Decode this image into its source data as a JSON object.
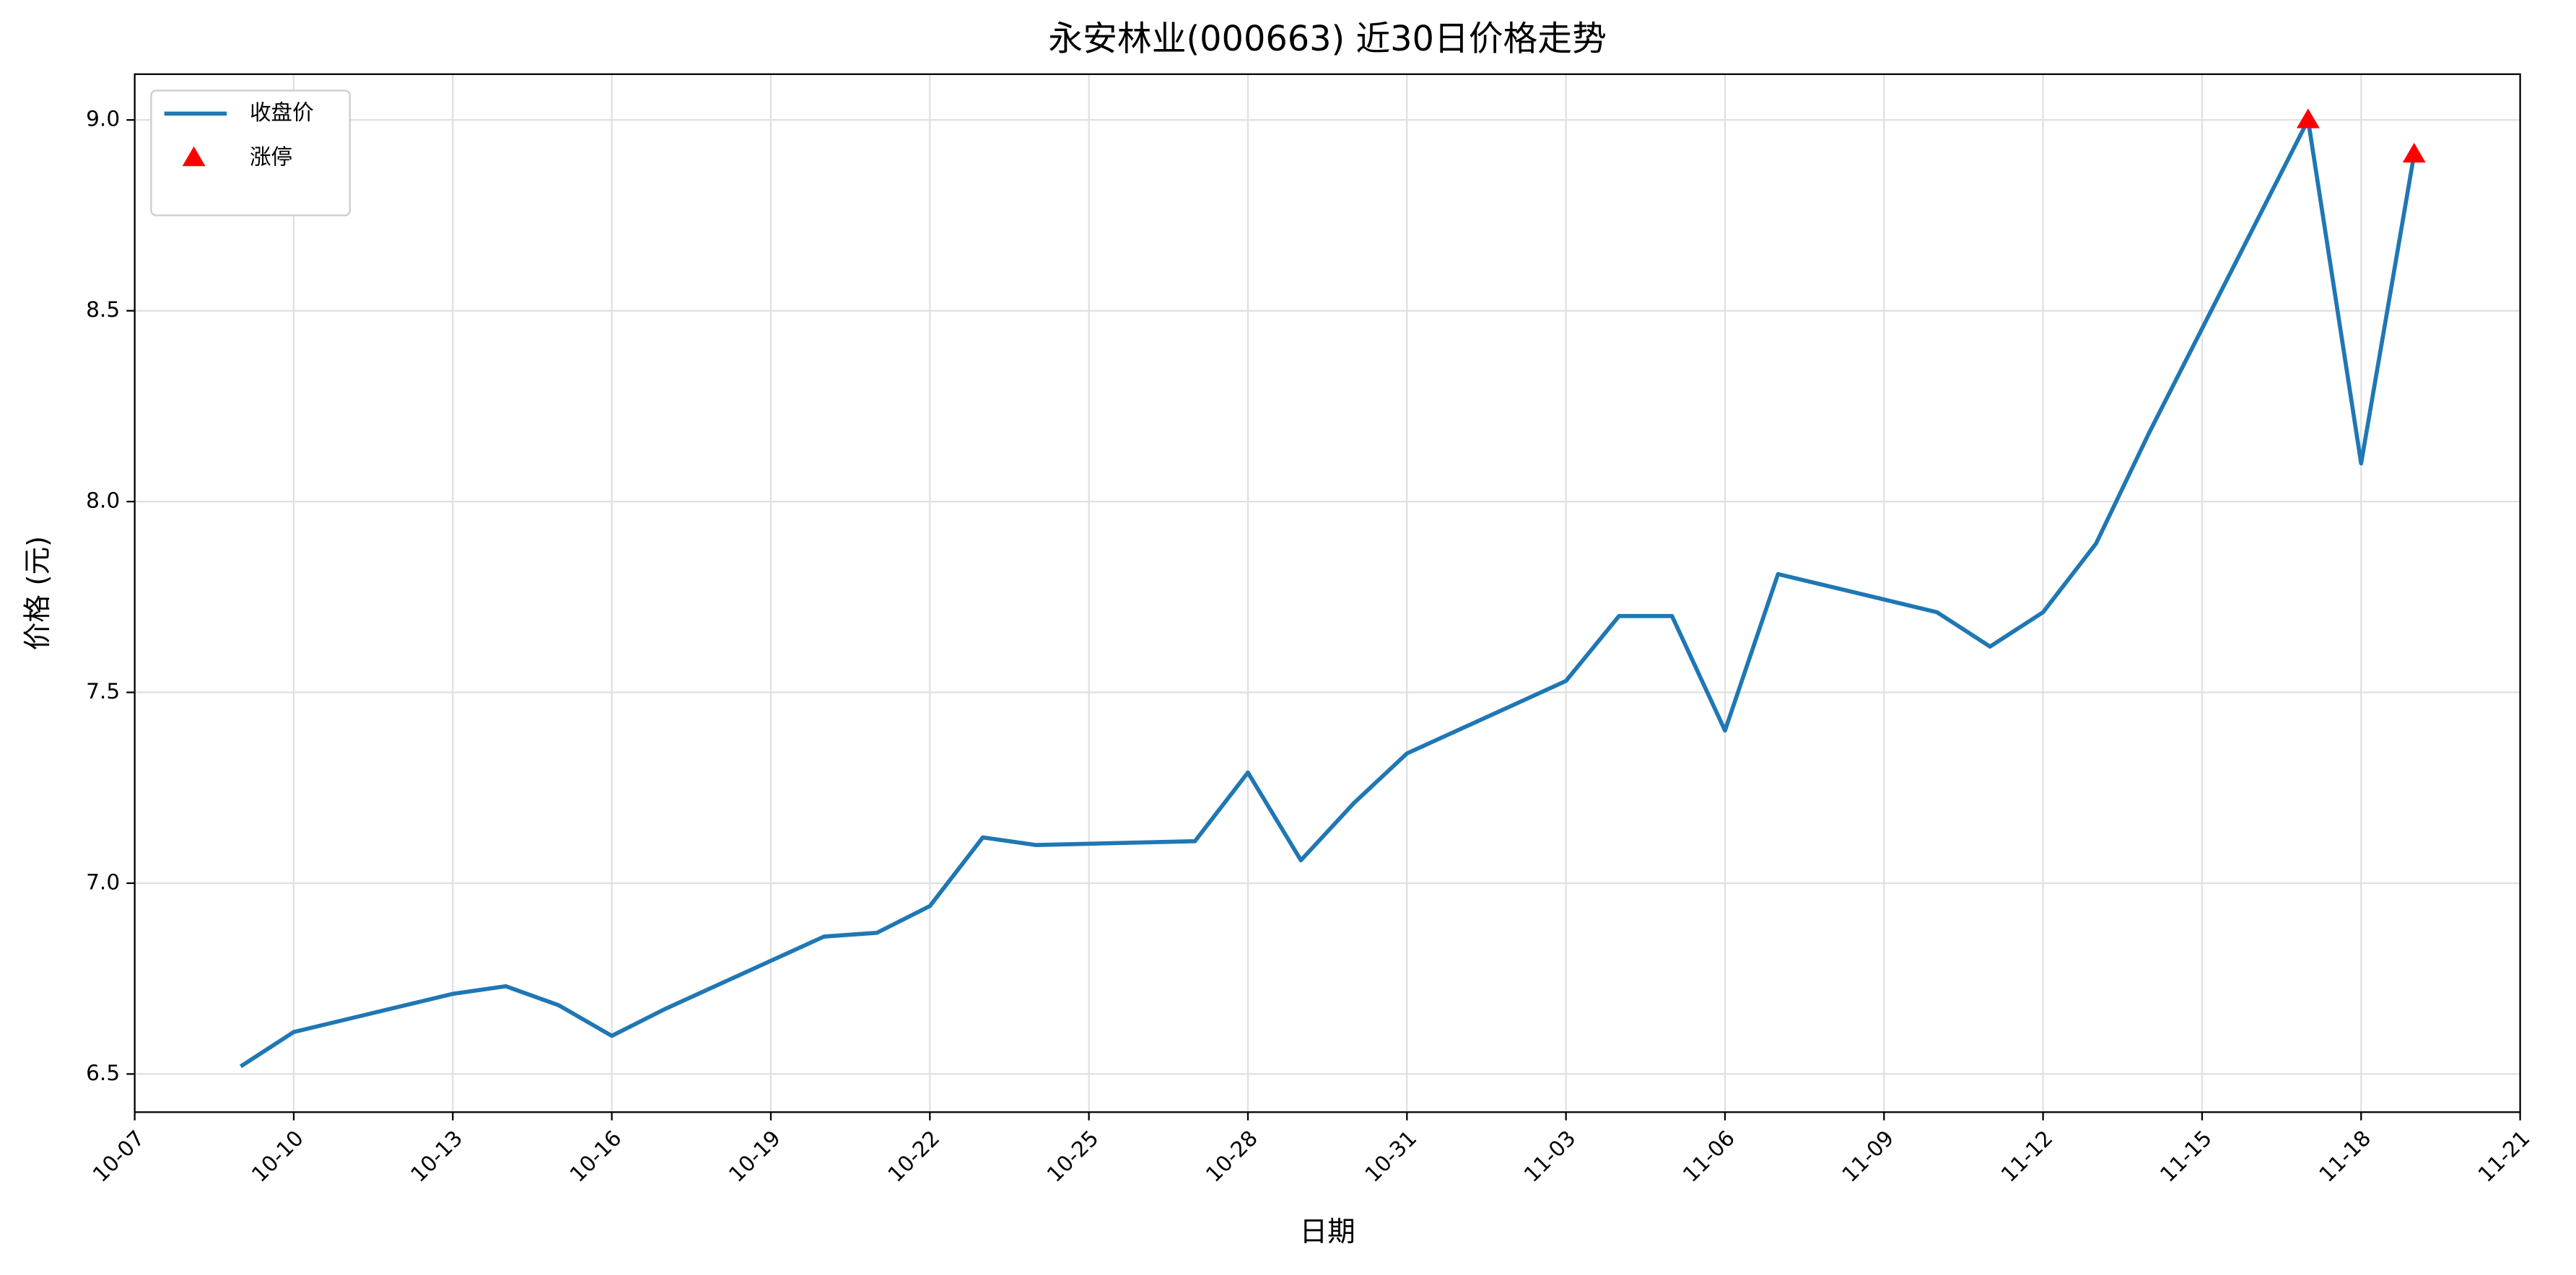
{
  "chart_data": {
    "type": "line",
    "title": "永安林业(000663) 近30日价格走势",
    "xlabel": "日期",
    "ylabel": "价格 (元)",
    "x": [
      "10-09",
      "10-10",
      "10-13",
      "10-14",
      "10-15",
      "10-16",
      "10-17",
      "10-20",
      "10-21",
      "10-22",
      "10-23",
      "10-24",
      "10-27",
      "10-28",
      "10-29",
      "10-30",
      "10-31",
      "11-03",
      "11-04",
      "11-05",
      "11-06",
      "11-07",
      "11-10",
      "11-11",
      "11-12",
      "11-13",
      "11-14",
      "11-17",
      "11-18",
      "11-19"
    ],
    "series": [
      {
        "name": "收盘价",
        "color": "#1f77b4",
        "values": [
          6.52,
          6.61,
          6.71,
          6.73,
          6.68,
          6.6,
          6.67,
          6.86,
          6.87,
          6.94,
          7.12,
          7.1,
          7.11,
          7.29,
          7.06,
          7.21,
          7.34,
          7.53,
          7.7,
          7.7,
          7.4,
          7.81,
          7.71,
          7.62,
          7.71,
          7.89,
          8.18,
          9.0,
          8.1,
          8.91
        ]
      },
      {
        "name": "涨停",
        "type": "scatter",
        "color": "#ff0000",
        "x": [
          "11-17",
          "11-19"
        ],
        "values": [
          9.0,
          8.91
        ]
      }
    ],
    "xlim": [
      "10-07",
      "11-21"
    ],
    "xticks": [
      "10-07",
      "10-10",
      "10-13",
      "10-16",
      "10-19",
      "10-22",
      "10-25",
      "10-28",
      "10-31",
      "11-03",
      "11-06",
      "11-09",
      "11-12",
      "11-15",
      "11-18",
      "11-21"
    ],
    "ylim": [
      6.4,
      9.12
    ],
    "yticks": [
      {
        "value": 6.5,
        "label": "6.5"
      },
      {
        "value": 7,
        "label": "7.0"
      },
      {
        "value": 7.5,
        "label": "7.5"
      },
      {
        "value": 8,
        "label": "8.0"
      },
      {
        "value": 8.5,
        "label": "8.5"
      },
      {
        "value": 9,
        "label": "9.0"
      }
    ],
    "grid": true,
    "legend": "upper left"
  }
}
